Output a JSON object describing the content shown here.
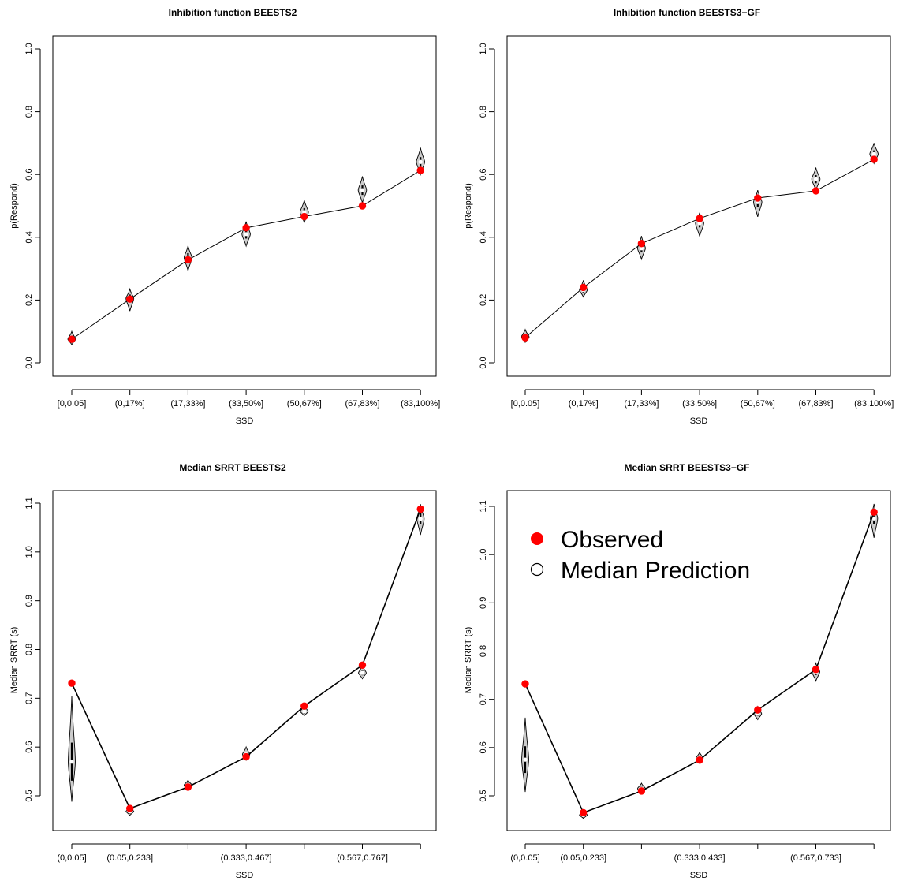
{
  "chart_data": [
    {
      "type": "line",
      "title": "Inhibition function BEESTS2",
      "xlabel": "SSD",
      "ylabel": "p(Respond)",
      "ylim": [
        0,
        1
      ],
      "yticks": [
        "0.0",
        "0.2",
        "0.4",
        "0.6",
        "0.8",
        "1.0"
      ],
      "categories": [
        "[0,0.05]",
        "(0,17%]",
        "(17,33%]",
        "(33,50%]",
        "(50,67%]",
        "(67,83%]",
        "(83,100%]"
      ],
      "observed": [
        0.075,
        0.203,
        0.328,
        0.43,
        0.466,
        0.5,
        0.613
      ],
      "prediction": [
        0.075,
        0.205,
        0.335,
        0.41,
        0.48,
        0.55,
        0.64
      ],
      "violin_range": [
        [
          0.058,
          0.1
        ],
        [
          0.165,
          0.235
        ],
        [
          0.293,
          0.373
        ],
        [
          0.372,
          0.45
        ],
        [
          0.447,
          0.518
        ],
        [
          0.51,
          0.594
        ],
        [
          0.6,
          0.685
        ]
      ],
      "violin_width": [
        0.3,
        0.3,
        0.3,
        0.32,
        0.32,
        0.32,
        0.32
      ],
      "grid": false
    },
    {
      "type": "line",
      "title": "Inhibition function BEESTS3−GF",
      "xlabel": "SSD",
      "ylabel": "p(Respond)",
      "ylim": [
        0,
        1
      ],
      "yticks": [
        "0.0",
        "0.2",
        "0.4",
        "0.6",
        "0.8",
        "1.0"
      ],
      "categories": [
        "[0,0.05]",
        "(0,17%]",
        "(17,33%]",
        "(33,50%]",
        "(50,67%]",
        "(67,83%]",
        "(83,100%]"
      ],
      "observed": [
        0.08,
        0.24,
        0.38,
        0.46,
        0.525,
        0.548,
        0.648
      ],
      "prediction": [
        0.082,
        0.232,
        0.365,
        0.445,
        0.512,
        0.585,
        0.665
      ],
      "violin_range": [
        [
          0.065,
          0.106
        ],
        [
          0.21,
          0.263
        ],
        [
          0.33,
          0.404
        ],
        [
          0.403,
          0.478
        ],
        [
          0.465,
          0.55
        ],
        [
          0.55,
          0.622
        ],
        [
          0.635,
          0.7
        ]
      ],
      "violin_width": [
        0.3,
        0.3,
        0.3,
        0.32,
        0.32,
        0.32,
        0.32
      ],
      "grid": false
    },
    {
      "type": "line",
      "title": "Median SRRT BEESTS2",
      "xlabel": "SSD",
      "ylabel": "Median SRRT (s)",
      "ylim": [
        0.465,
        1.1
      ],
      "yticks": [
        "0.5",
        "0.6",
        "0.7",
        "0.8",
        "0.9",
        "1.0",
        "1.1"
      ],
      "categories": [
        "(0,0.05]",
        "(0.05,0.233]",
        "",
        "(0.333,0.467]",
        "",
        "(0.567,0.767]",
        ""
      ],
      "observed": [
        0.731,
        0.474,
        0.518,
        0.58,
        0.684,
        0.768,
        1.088
      ],
      "prediction": [
        0.57,
        0.468,
        0.522,
        0.585,
        0.673,
        0.752,
        1.068
      ],
      "violin_range": [
        [
          0.488,
          0.705
        ],
        [
          0.46,
          0.476
        ],
        [
          0.512,
          0.532
        ],
        [
          0.573,
          0.6
        ],
        [
          0.664,
          0.685
        ],
        [
          0.74,
          0.767
        ],
        [
          1.035,
          1.098
        ]
      ],
      "violin_width": [
        0.22,
        0.3,
        0.3,
        0.28,
        0.3,
        0.3,
        0.28
      ],
      "grid": false
    },
    {
      "type": "line",
      "title": "Median SRRT BEESTS3−GF",
      "xlabel": "SSD",
      "ylabel": "Median SRRT (s)",
      "ylim": [
        0.44,
        1.115
      ],
      "yticks": [
        "0.5",
        "0.6",
        "0.7",
        "0.8",
        "0.9",
        "1.0",
        "1.1"
      ],
      "categories": [
        "(0,0.05]",
        "(0.05,0.233]",
        "",
        "(0.333,0.433]",
        "",
        "(0.567,0.733]",
        ""
      ],
      "observed": [
        0.732,
        0.465,
        0.51,
        0.574,
        0.678,
        0.762,
        1.088
      ],
      "prediction": [
        0.575,
        0.46,
        0.515,
        0.578,
        0.67,
        0.757,
        1.075
      ],
      "violin_range": [
        [
          0.508,
          0.662
        ],
        [
          0.453,
          0.47
        ],
        [
          0.505,
          0.526
        ],
        [
          0.567,
          0.59
        ],
        [
          0.658,
          0.685
        ],
        [
          0.738,
          0.775
        ],
        [
          1.035,
          1.105
        ]
      ],
      "violin_width": [
        0.22,
        0.3,
        0.3,
        0.28,
        0.3,
        0.3,
        0.28
      ],
      "grid": false,
      "legend": {
        "placement": "top-left",
        "entries": [
          "Observed",
          "Median Prediction"
        ]
      }
    }
  ],
  "colors": {
    "observed": "#ff0000",
    "violin_fill": "#cccccc",
    "line": "#000000"
  }
}
